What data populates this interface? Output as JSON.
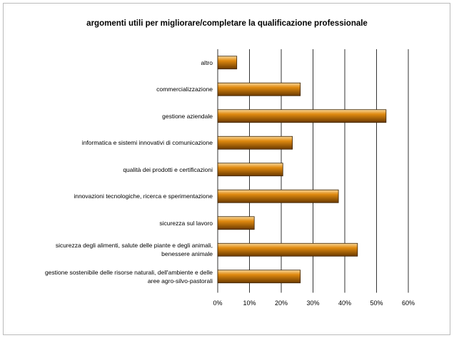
{
  "chart_data": {
    "type": "barh",
    "title": "argomenti utili per migliorare/completare la qualificazione professionale",
    "categories": [
      "altro",
      "commercializzazione",
      "gestione aziendale",
      "informatica e sistemi innovativi di comunicazione",
      "qualità dei prodotti e certificazioni",
      "innovazioni tecnologiche,  ricerca e sperimentazione",
      "sicurezza sul lavoro",
      "sicurezza degli alimenti, salute delle piante e degli animali, benessere animale",
      "gestione sostenibile delle risorse naturali, dell'ambiente e delle aree agro-silvo-pastorali"
    ],
    "values": [
      6,
      26,
      53,
      23.5,
      20.5,
      38,
      11.5,
      44,
      26
    ],
    "color": "#e08a10",
    "xlim": [
      0,
      60
    ],
    "xticks": [
      {
        "value": 0,
        "label": "0%"
      },
      {
        "value": 10,
        "label": "10%"
      },
      {
        "value": 20,
        "label": "20%"
      },
      {
        "value": 30,
        "label": "30%"
      },
      {
        "value": 40,
        "label": "40%"
      },
      {
        "value": 50,
        "label": "50%"
      },
      {
        "value": 60,
        "label": "60%"
      }
    ],
    "grid": true
  }
}
